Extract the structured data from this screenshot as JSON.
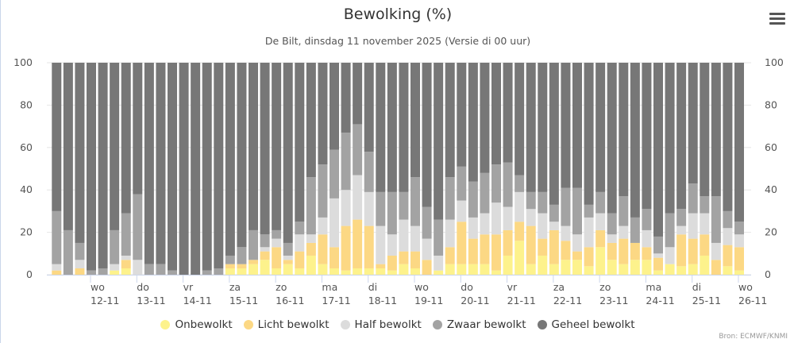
{
  "title": "Bewolking (%)",
  "subtitle": "De Bilt, dinsdag 11 november 2025 (Versie di 00 uur)",
  "credits": "Bron: ECMWF/KNMI",
  "menu_icon": "hamburger-menu-icon",
  "chart_data": {
    "type": "bar",
    "stacked": true,
    "title": "Bewolking (%)",
    "ylim": [
      0,
      100
    ],
    "y_ticks": [
      0,
      20,
      40,
      60,
      80,
      100
    ],
    "grid": true,
    "legend_position": "bottom",
    "x_ticks": [
      {
        "day": "wo",
        "date": "12-11"
      },
      {
        "day": "do",
        "date": "13-11"
      },
      {
        "day": "vr",
        "date": "14-11"
      },
      {
        "day": "za",
        "date": "15-11"
      },
      {
        "day": "zo",
        "date": "16-11"
      },
      {
        "day": "ma",
        "date": "17-11"
      },
      {
        "day": "di",
        "date": "18-11"
      },
      {
        "day": "wo",
        "date": "19-11"
      },
      {
        "day": "do",
        "date": "20-11"
      },
      {
        "day": "vr",
        "date": "21-11"
      },
      {
        "day": "za",
        "date": "22-11"
      },
      {
        "day": "zo",
        "date": "23-11"
      },
      {
        "day": "ma",
        "date": "24-11"
      },
      {
        "day": "di",
        "date": "25-11"
      },
      {
        "day": "wo",
        "date": "26-11"
      }
    ],
    "series": [
      {
        "name": "Onbewolkt",
        "color": "#fdf28c",
        "values": [
          0,
          0,
          0,
          0,
          0,
          2,
          3,
          0,
          0,
          0,
          0,
          0,
          0,
          0,
          0,
          3,
          3,
          5,
          7,
          3,
          5,
          3,
          9,
          5,
          3,
          2,
          3,
          3,
          3,
          2,
          5,
          3,
          0,
          2,
          5,
          5,
          5,
          5,
          2,
          9,
          16,
          5,
          9,
          5,
          7,
          7,
          4,
          13,
          7,
          5,
          7,
          7,
          2,
          5,
          4,
          5,
          9,
          0,
          4,
          2
        ]
      },
      {
        "name": "Licht bewolkt",
        "color": "#fcd884",
        "values": [
          2,
          0,
          3,
          0,
          0,
          0,
          4,
          0,
          0,
          0,
          0,
          0,
          0,
          0,
          0,
          2,
          2,
          2,
          4,
          10,
          2,
          8,
          6,
          14,
          10,
          21,
          23,
          20,
          2,
          7,
          6,
          8,
          7,
          0,
          8,
          20,
          12,
          14,
          17,
          12,
          9,
          18,
          8,
          16,
          9,
          4,
          9,
          8,
          8,
          12,
          8,
          6,
          6,
          0,
          15,
          12,
          10,
          7,
          10,
          11
        ]
      },
      {
        "name": "Half bewolkt",
        "color": "#dcdcdc",
        "values": [
          3,
          0,
          4,
          0,
          0,
          3,
          2,
          7,
          0,
          0,
          0,
          0,
          0,
          0,
          0,
          0,
          0,
          0,
          2,
          4,
          2,
          8,
          4,
          8,
          23,
          17,
          21,
          16,
          18,
          10,
          15,
          12,
          10,
          7,
          13,
          10,
          10,
          10,
          15,
          11,
          14,
          8,
          12,
          4,
          7,
          8,
          14,
          8,
          4,
          6,
          0,
          8,
          2,
          8,
          4,
          12,
          10,
          8,
          8,
          6
        ]
      },
      {
        "name": "Zwaar bewolkt",
        "color": "#a3a3a3",
        "values": [
          25,
          21,
          8,
          2,
          3,
          16,
          20,
          31,
          5,
          5,
          2,
          0,
          0,
          2,
          3,
          4,
          8,
          14,
          6,
          4,
          6,
          6,
          27,
          25,
          23,
          27,
          24,
          19,
          16,
          20,
          13,
          23,
          15,
          17,
          20,
          16,
          17,
          19,
          18,
          21,
          8,
          8,
          10,
          8,
          18,
          22,
          6,
          10,
          10,
          14,
          12,
          10,
          8,
          16,
          8,
          14,
          8,
          22,
          8,
          6
        ]
      },
      {
        "name": "Geheel bewolkt",
        "color": "#777777",
        "values": [
          70,
          79,
          85,
          98,
          97,
          79,
          71,
          62,
          95,
          95,
          98,
          100,
          100,
          98,
          97,
          91,
          87,
          79,
          81,
          79,
          85,
          75,
          54,
          48,
          41,
          33,
          29,
          42,
          61,
          61,
          61,
          54,
          68,
          74,
          54,
          49,
          56,
          52,
          48,
          47,
          53,
          61,
          61,
          67,
          59,
          59,
          67,
          61,
          71,
          63,
          73,
          69,
          82,
          71,
          69,
          57,
          63,
          63,
          70,
          75
        ]
      }
    ]
  }
}
